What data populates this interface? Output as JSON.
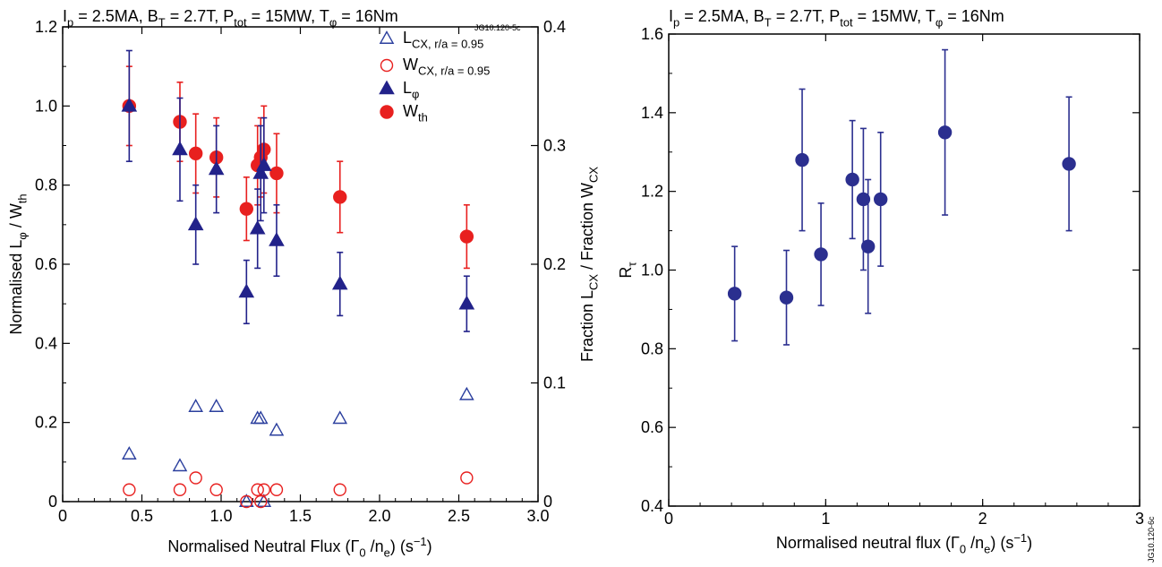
{
  "chart_data": [
    {
      "type": "scatter",
      "title_parts": {
        "ip": "I",
        "ip_sub": "p",
        "ip_val": " = 2.5MA, B",
        "bt_sub": "T",
        "bt_val": " = 2.7T, P",
        "p_sub": "tot",
        "p_val": " = 15MW, T",
        "t_sub": "φ",
        "t_val": " = 16Nm"
      },
      "code_label": "JG10.120-5c",
      "xlabel_parts": {
        "a": "Normalised Neutral Flux (Γ",
        "a_sub": "0",
        "b": " /n",
        "b_sub": "e",
        "c": ") (s",
        "c_sup": "−1",
        "d": ")"
      },
      "ylabel_parts": {
        "a": "Normalised L",
        "a_sub": "φ",
        "b": " / W",
        "b_sub": "th"
      },
      "y2label_parts": {
        "a": "Fraction L",
        "a_sub": "CX",
        "b": " / Fraction W",
        "b_sub": "CX"
      },
      "xlim": [
        0,
        3.0
      ],
      "ylim": [
        0,
        1.2
      ],
      "y2lim": [
        0,
        0.4
      ],
      "x_ticks": [
        "0",
        "0.5",
        "1.0",
        "1.5",
        "2.0",
        "2.5",
        "3.0"
      ],
      "y_ticks": [
        "0",
        "0.2",
        "0.4",
        "0.6",
        "0.8",
        "1.0",
        "1.2"
      ],
      "y2_ticks": [
        "0",
        "0.1",
        "0.2",
        "0.3",
        "0.4"
      ],
      "legend": [
        {
          "symbol": "open-triangle",
          "color": "#2b3f9e",
          "main": "L",
          "sub": "CX, r/a = 0.95"
        },
        {
          "symbol": "open-circle",
          "color": "#e8201f",
          "main": "W",
          "sub": "CX, r/a = 0.95"
        },
        {
          "symbol": "filled-triangle",
          "color": "#22228a",
          "main": "L",
          "sub": "φ"
        },
        {
          "symbol": "filled-circle",
          "color": "#e8201f",
          "main": "W",
          "sub": "th"
        }
      ],
      "series": [
        {
          "name": "W_th",
          "symbol": "filled-circle",
          "color": "#e8201f",
          "axis": "left",
          "x": [
            0.42,
            0.74,
            0.84,
            0.97,
            1.16,
            1.23,
            1.25,
            1.27,
            1.35,
            1.75,
            2.55
          ],
          "y": [
            1.0,
            0.96,
            0.88,
            0.87,
            0.74,
            0.85,
            0.87,
            0.89,
            0.83,
            0.77,
            0.67
          ],
          "err": [
            0.1,
            0.1,
            0.1,
            0.1,
            0.08,
            0.1,
            0.1,
            0.11,
            0.1,
            0.09,
            0.08
          ]
        },
        {
          "name": "L_phi",
          "symbol": "filled-triangle",
          "color": "#22228a",
          "axis": "left",
          "x": [
            0.42,
            0.74,
            0.84,
            0.97,
            1.16,
            1.23,
            1.25,
            1.27,
            1.35,
            1.75,
            2.55
          ],
          "y": [
            1.0,
            0.89,
            0.7,
            0.84,
            0.53,
            0.69,
            0.83,
            0.85,
            0.66,
            0.55,
            0.5
          ],
          "err": [
            0.14,
            0.13,
            0.1,
            0.11,
            0.08,
            0.1,
            0.12,
            0.12,
            0.09,
            0.08,
            0.07
          ]
        },
        {
          "name": "L_CX",
          "symbol": "open-triangle",
          "color": "#2b3f9e",
          "axis": "right",
          "x": [
            0.42,
            0.74,
            0.84,
            0.97,
            1.16,
            1.23,
            1.25,
            1.27,
            1.35,
            1.75,
            2.55
          ],
          "y": [
            0.04,
            0.03,
            0.08,
            0.08,
            0.0,
            0.07,
            0.07,
            0.0,
            0.06,
            0.07,
            0.09
          ]
        },
        {
          "name": "W_CX",
          "symbol": "open-circle",
          "color": "#e8201f",
          "axis": "right",
          "x": [
            0.42,
            0.74,
            0.84,
            0.97,
            1.16,
            1.23,
            1.25,
            1.27,
            1.35,
            1.75,
            2.55
          ],
          "y": [
            0.01,
            0.01,
            0.02,
            0.01,
            0.0,
            0.01,
            0.0,
            0.01,
            0.01,
            0.01,
            0.02
          ]
        }
      ]
    },
    {
      "type": "scatter",
      "title_parts": {
        "ip": "I",
        "ip_sub": "p",
        "ip_val": " = 2.5MA, B",
        "bt_sub": "T",
        "bt_val": " = 2.7T, P",
        "p_sub": "tot",
        "p_val": " = 15MW, T",
        "t_sub": "φ",
        "t_val": " = 16Nm"
      },
      "code_label": "JG10.120-6c",
      "xlabel_parts": {
        "a": "Normalised neutral flux (Γ",
        "a_sub": "0",
        "b": " /n",
        "b_sub": "e",
        "c": ") (s",
        "c_sup": "−1",
        "d": ")"
      },
      "ylabel_parts": {
        "a": "R",
        "a_sub": "τ"
      },
      "xlim": [
        0,
        3
      ],
      "ylim": [
        0.4,
        1.6
      ],
      "x_ticks": [
        "0",
        "1",
        "2",
        "3"
      ],
      "y_ticks": [
        "0.4",
        "0.6",
        "0.8",
        "1.0",
        "1.2",
        "1.4",
        "1.6"
      ],
      "series": [
        {
          "symbol": "filled-circle",
          "color": "#2b2f8f",
          "x": [
            0.42,
            0.75,
            0.85,
            0.97,
            1.17,
            1.24,
            1.27,
            1.35,
            1.76,
            2.55
          ],
          "y": [
            0.94,
            0.93,
            1.28,
            1.04,
            1.23,
            1.18,
            1.06,
            1.18,
            1.35,
            1.27
          ],
          "err": [
            0.12,
            0.12,
            0.18,
            0.13,
            0.15,
            0.18,
            0.17,
            0.17,
            0.21,
            0.17
          ]
        }
      ]
    }
  ]
}
